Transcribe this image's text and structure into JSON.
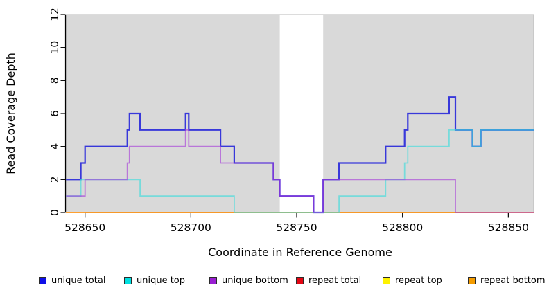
{
  "chart_data": {
    "type": "line",
    "step": true,
    "title": "",
    "xlabel": "Coordinate in Reference Genome",
    "ylabel": "Read Coverage Depth",
    "xlim": [
      528641,
      528862
    ],
    "ylim": [
      0,
      12
    ],
    "x_ticks": [
      528650,
      528700,
      528750,
      528800,
      528850
    ],
    "y_ticks": [
      0,
      2,
      4,
      6,
      8,
      10,
      12
    ],
    "background": "#d9d9d9",
    "box_color": "#b9b9b9",
    "gap_region": {
      "start": 528742,
      "end": 528762.5,
      "color": "#ffffff"
    },
    "series": [
      {
        "name": "repeat total",
        "color": "#e40613",
        "opacity": 1,
        "width": 1.6,
        "points": [
          [
            528641,
            0
          ]
        ],
        "x_end": 528862
      },
      {
        "name": "repeat top",
        "color": "#ffe800",
        "opacity": 1,
        "width": 1.6,
        "points": [
          [
            528641,
            0
          ]
        ],
        "x_end": 528862
      },
      {
        "name": "repeat bottom",
        "color": "#ff9d2e",
        "opacity": 1,
        "width": 1.8,
        "points": [
          [
            528641,
            0
          ]
        ],
        "x_end": 528862
      },
      {
        "name": "unique total",
        "color": "#2a2ada",
        "opacity": 0.92,
        "width": 2.2,
        "points": [
          [
            528641,
            2
          ],
          [
            528648,
            3
          ],
          [
            528650,
            4
          ],
          [
            528670,
            5
          ],
          [
            528671,
            6
          ],
          [
            528676,
            5
          ],
          [
            528697.5,
            6
          ],
          [
            528699,
            5
          ],
          [
            528714,
            4
          ],
          [
            528720.5,
            3
          ],
          [
            528739,
            2
          ],
          [
            528742,
            1
          ],
          [
            528758,
            0
          ],
          [
            528762.5,
            2
          ],
          [
            528770,
            3
          ],
          [
            528792,
            4
          ],
          [
            528801,
            5
          ],
          [
            528802.5,
            6
          ],
          [
            528822,
            7
          ],
          [
            528825,
            5
          ],
          [
            528833,
            4
          ],
          [
            528837,
            5
          ]
        ],
        "x_end": 528862
      },
      {
        "name": "unique top",
        "color": "#40dcdc",
        "opacity": 0.65,
        "width": 1.8,
        "points": [
          [
            528641,
            1
          ],
          [
            528648,
            2
          ],
          [
            528676,
            1
          ],
          [
            528720.5,
            0
          ],
          [
            528770,
            1
          ],
          [
            528792,
            2
          ],
          [
            528801,
            3
          ],
          [
            528802.5,
            4
          ],
          [
            528822,
            5
          ],
          [
            528833,
            4
          ],
          [
            528837,
            5
          ]
        ],
        "x_end": 528862
      },
      {
        "name": "unique bottom",
        "color": "#a438d8",
        "opacity": 0.62,
        "width": 1.8,
        "points": [
          [
            528641,
            1
          ],
          [
            528650,
            2
          ],
          [
            528670,
            3
          ],
          [
            528671,
            4
          ],
          [
            528697.5,
            5
          ],
          [
            528699,
            4
          ],
          [
            528714,
            3
          ],
          [
            528739,
            2
          ],
          [
            528742,
            1
          ],
          [
            528758,
            0
          ],
          [
            528762.5,
            2
          ],
          [
            528825,
            0
          ]
        ],
        "x_end": 528862
      }
    ]
  },
  "legend": {
    "items": [
      {
        "label": "unique total",
        "color": "#0f0fe8"
      },
      {
        "label": "unique top",
        "color": "#00e0e0"
      },
      {
        "label": "unique bottom",
        "color": "#991fd2"
      },
      {
        "label": "repeat total",
        "color": "#e40613"
      },
      {
        "label": "repeat top",
        "color": "#fef200"
      },
      {
        "label": "repeat bottom",
        "color": "#f49c00"
      }
    ]
  }
}
